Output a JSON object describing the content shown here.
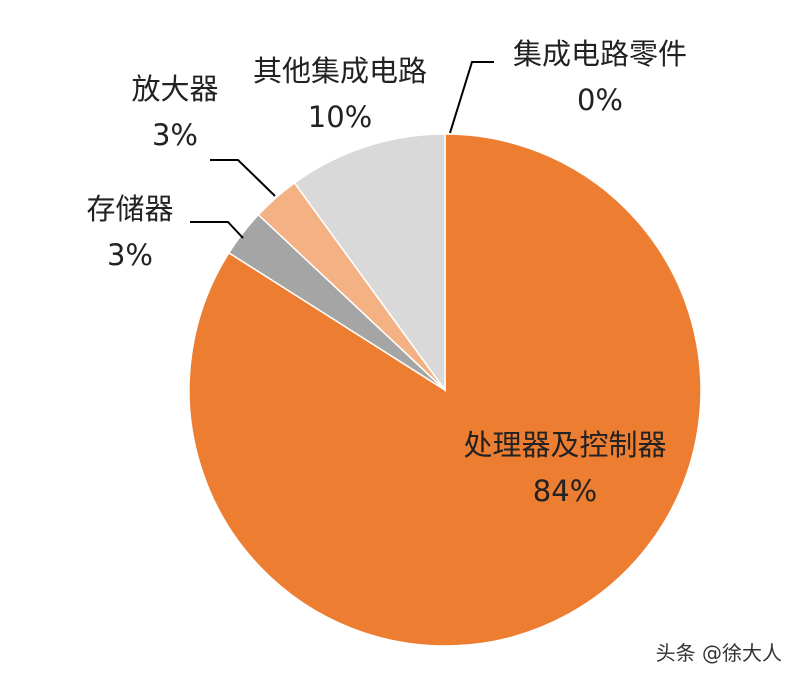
{
  "chart_data": {
    "type": "pie",
    "categories": [
      "处理器及控制器",
      "存储器",
      "放大器",
      "其他集成电路",
      "集成电路零件"
    ],
    "values": [
      84,
      3,
      3,
      10,
      0
    ],
    "value_labels": [
      "84%",
      "3%",
      "3%",
      "10%",
      "0%"
    ],
    "colors": [
      "#ED7D31",
      "#A5A5A5",
      "#F4B183",
      "#D9D9D9",
      "#BFBFBF"
    ]
  },
  "watermark": "头条 @徐大人"
}
